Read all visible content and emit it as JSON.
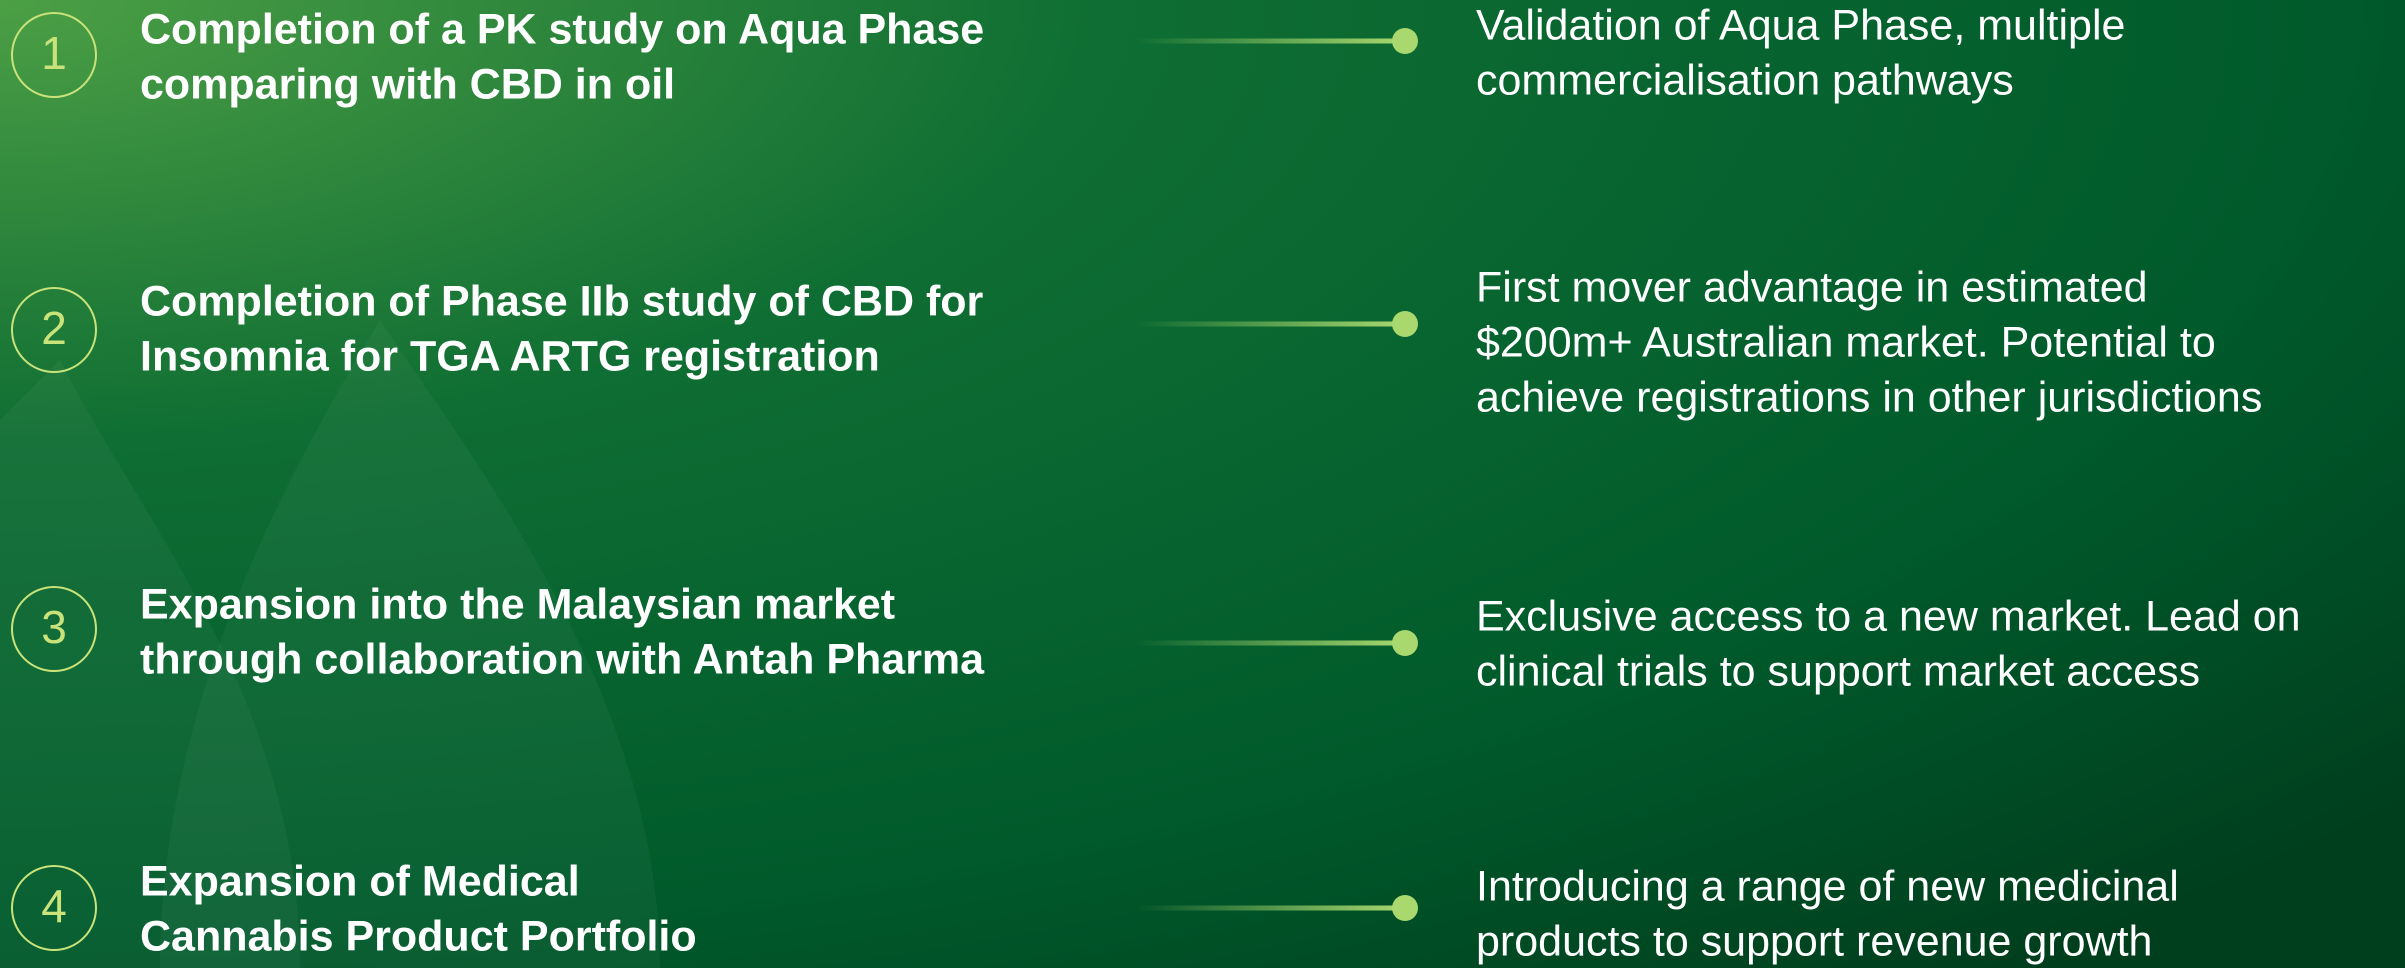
{
  "items": [
    {
      "number": "1",
      "title_lines": [
        "Completion of a PK study on Aqua Phase",
        "comparing with CBD in oil"
      ],
      "description_lines": [
        "Validation of Aqua Phase, multiple",
        "commercialisation pathways"
      ]
    },
    {
      "number": "2",
      "title_lines": [
        "Completion of Phase IIb study of CBD for",
        "Insomnia for TGA ARTG registration"
      ],
      "description_lines": [
        "First mover advantage in estimated",
        "$200m+ Australian market. Potential to",
        "achieve registrations in other jurisdictions"
      ]
    },
    {
      "number": "3",
      "title_lines": [
        "Expansion into the Malaysian market",
        "through collaboration with Antah Pharma"
      ],
      "description_lines": [
        "Exclusive access to a new market. Lead on",
        "clinical trials to support market access"
      ]
    },
    {
      "number": "4",
      "title_lines": [
        "Expansion of Medical",
        "Cannabis Product Portfolio"
      ],
      "description_lines": [
        "Introducing a range of new medicinal",
        "products to support revenue growth"
      ]
    }
  ]
}
